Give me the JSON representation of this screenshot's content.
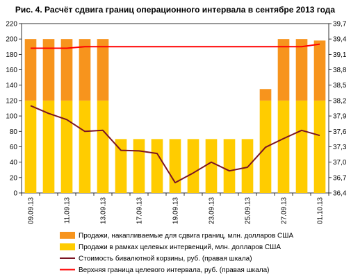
{
  "chart_data": {
    "type": "bar",
    "title": "Рис. 4. Расчёт сдвига границ операционного интервала в сентябре 2013 года",
    "x": [
      "09.09.13",
      "10.09.13",
      "11.09.13",
      "12.09.13",
      "13.09.13",
      "16.09.13",
      "17.09.13",
      "18.09.13",
      "19.09.13",
      "20.09.13",
      "23.09.13",
      "24.09.13",
      "25.09.13",
      "26.09.13",
      "27.09.13",
      "30.09.13",
      "01.10.13"
    ],
    "x_tick_labels": [
      "09.09.13",
      "11.09.13",
      "13.09.13",
      "17.09.13",
      "19.09.13",
      "23.09.13",
      "25.09.13",
      "27.09.13",
      "01.10.13"
    ],
    "left_axis": {
      "ylim": [
        0,
        220
      ],
      "ticks": [
        "0",
        "20",
        "40",
        "60",
        "80",
        "100",
        "120",
        "140",
        "160",
        "180",
        "200",
        "220"
      ]
    },
    "right_axis": {
      "ylim": [
        36.4,
        39.7
      ],
      "ticks": [
        "36,4",
        "36,7",
        "37,0",
        "37,3",
        "37,6",
        "37,9",
        "38,2",
        "38,5",
        "38,8",
        "39,1",
        "39,4",
        "39,7"
      ]
    },
    "series": [
      {
        "name": "Продажи, накапливаемые для сдвига границ, млн. долларов США",
        "kind": "bar-stack",
        "axis": "left",
        "color": "#F7941D",
        "values": [
          80,
          80,
          80,
          80,
          80,
          0,
          0,
          0,
          0,
          0,
          0,
          0,
          0,
          15,
          80,
          80,
          78
        ]
      },
      {
        "name": "Продажи в рамках целевых интервенций, млн. долларов США",
        "kind": "bar-stack",
        "axis": "left",
        "color": "#FFCC00",
        "values": [
          120,
          120,
          120,
          120,
          120,
          70,
          70,
          70,
          70,
          70,
          70,
          70,
          70,
          120,
          120,
          120,
          120
        ]
      },
      {
        "name": "Стоимость бивалютной корзины, руб. (правая шкала)",
        "kind": "line",
        "axis": "right",
        "color": "#7B1423",
        "values": [
          38.1,
          37.95,
          37.83,
          37.6,
          37.62,
          37.23,
          37.22,
          37.17,
          36.6,
          36.79,
          37.0,
          36.83,
          36.9,
          37.29,
          37.46,
          37.62,
          37.52
        ]
      },
      {
        "name": "Верхняя граница целевого интервала, руб. (правая шкала)",
        "kind": "line",
        "axis": "right",
        "color": "#FF0000",
        "values": [
          39.22,
          39.22,
          39.22,
          39.25,
          39.25,
          39.25,
          39.25,
          39.25,
          39.25,
          39.25,
          39.25,
          39.25,
          39.25,
          39.25,
          39.25,
          39.25,
          39.3
        ]
      }
    ],
    "grid": false,
    "legend_position": "bottom"
  }
}
